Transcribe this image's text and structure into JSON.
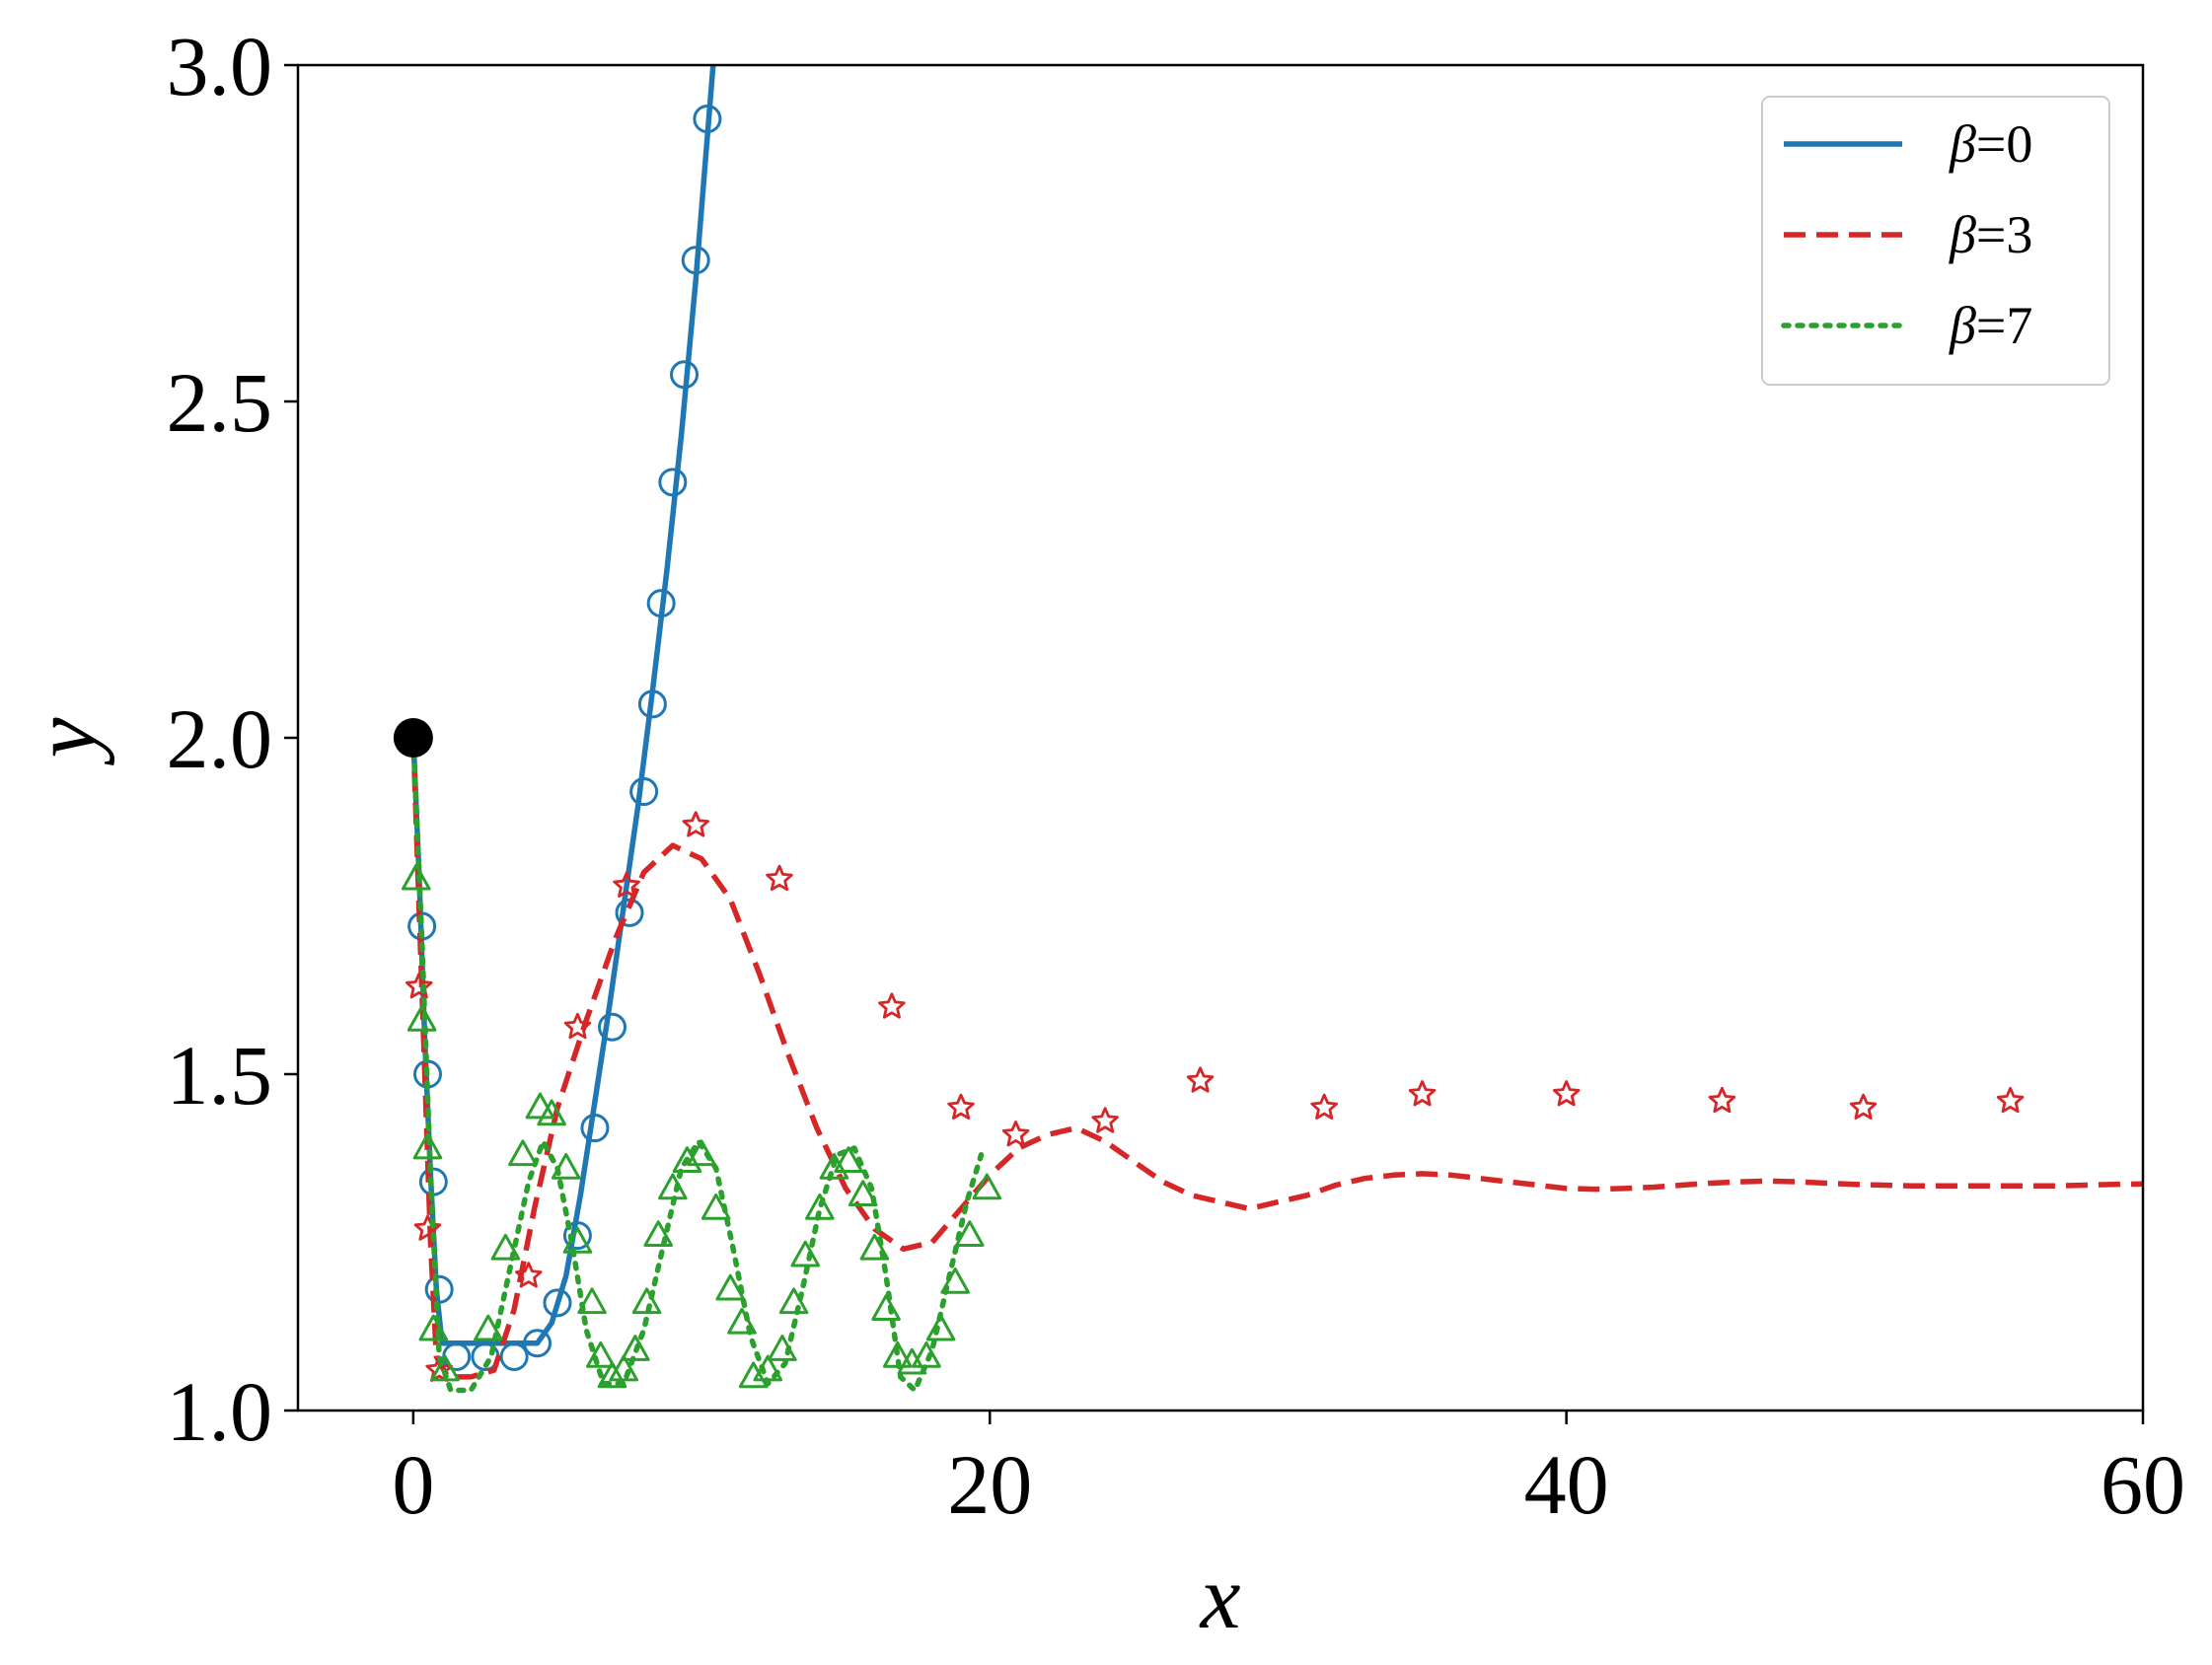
{
  "chart_data": {
    "type": "line",
    "title": "",
    "xlabel": "x",
    "ylabel": "y",
    "xlim": [
      -4,
      60
    ],
    "ylim": [
      1.0,
      3.0
    ],
    "xticks": [
      0,
      20,
      40,
      60
    ],
    "xtick_labels": [
      "0",
      "20",
      "40",
      "60"
    ],
    "yticks": [
      1.0,
      1.5,
      2.0,
      2.5,
      3.0
    ],
    "ytick_labels": [
      "1.0",
      "1.5",
      "2.0",
      "2.5",
      "3.0"
    ],
    "grid": false,
    "legend_position": "top-right",
    "start_point": {
      "x": 0,
      "y": 2.0
    },
    "series": [
      {
        "name": "β=0",
        "legend_symbol": "β",
        "legend_value": "=0",
        "color": "#1f77b4",
        "line_style": "solid",
        "marker": "circle",
        "line": [
          [
            0,
            2.0
          ],
          [
            0.2,
            1.8
          ],
          [
            0.4,
            1.55
          ],
          [
            0.6,
            1.35
          ],
          [
            0.8,
            1.18
          ],
          [
            1.0,
            1.1
          ],
          [
            1.5,
            1.1
          ],
          [
            2.5,
            1.1
          ],
          [
            3.5,
            1.1
          ],
          [
            4.3,
            1.1
          ],
          [
            4.8,
            1.13
          ],
          [
            5.3,
            1.2
          ],
          [
            5.8,
            1.32
          ],
          [
            6.3,
            1.46
          ],
          [
            6.8,
            1.6
          ],
          [
            7.3,
            1.75
          ],
          [
            7.8,
            1.9
          ],
          [
            8.3,
            2.07
          ],
          [
            8.8,
            2.25
          ],
          [
            9.3,
            2.45
          ],
          [
            9.8,
            2.68
          ],
          [
            10.4,
            3.0
          ]
        ],
        "markers": [
          [
            0.3,
            1.72
          ],
          [
            0.5,
            1.5
          ],
          [
            0.7,
            1.34
          ],
          [
            0.9,
            1.18
          ],
          [
            1.5,
            1.08
          ],
          [
            2.5,
            1.08
          ],
          [
            3.5,
            1.08
          ],
          [
            4.3,
            1.1
          ],
          [
            5.0,
            1.16
          ],
          [
            5.7,
            1.26
          ],
          [
            6.3,
            1.42
          ],
          [
            6.9,
            1.57
          ],
          [
            7.5,
            1.74
          ],
          [
            8.0,
            1.92
          ],
          [
            8.3,
            2.05
          ],
          [
            8.6,
            2.2
          ],
          [
            9.0,
            2.38
          ],
          [
            9.4,
            2.54
          ],
          [
            9.8,
            2.71
          ],
          [
            10.2,
            2.92
          ]
        ]
      },
      {
        "name": "β=3",
        "legend_symbol": "β",
        "legend_value": "=3",
        "color": "#d62728",
        "line_style": "dashed",
        "marker": "star",
        "line": [
          [
            0,
            2.0
          ],
          [
            0.2,
            1.75
          ],
          [
            0.4,
            1.5
          ],
          [
            0.6,
            1.25
          ],
          [
            0.8,
            1.08
          ],
          [
            1.2,
            1.05
          ],
          [
            2.0,
            1.05
          ],
          [
            2.8,
            1.06
          ],
          [
            3.5,
            1.15
          ],
          [
            4.2,
            1.3
          ],
          [
            5.0,
            1.45
          ],
          [
            6.0,
            1.58
          ],
          [
            7.0,
            1.7
          ],
          [
            8.0,
            1.8
          ],
          [
            9.0,
            1.84
          ],
          [
            10.0,
            1.82
          ],
          [
            11.0,
            1.76
          ],
          [
            12.0,
            1.65
          ],
          [
            13.0,
            1.53
          ],
          [
            14.0,
            1.42
          ],
          [
            15.0,
            1.33
          ],
          [
            16.0,
            1.27
          ],
          [
            17.0,
            1.24
          ],
          [
            18.0,
            1.25
          ],
          [
            19.0,
            1.3
          ],
          [
            20.0,
            1.35
          ],
          [
            21.0,
            1.39
          ],
          [
            22.0,
            1.41
          ],
          [
            23.0,
            1.42
          ],
          [
            24.0,
            1.4
          ],
          [
            25.0,
            1.37
          ],
          [
            26.0,
            1.34
          ],
          [
            27.0,
            1.32
          ],
          [
            28.0,
            1.31
          ],
          [
            29.0,
            1.3
          ],
          [
            30.0,
            1.31
          ],
          [
            31.0,
            1.32
          ],
          [
            32.0,
            1.335
          ],
          [
            33.0,
            1.345
          ],
          [
            34.0,
            1.35
          ],
          [
            35.0,
            1.352
          ],
          [
            36.0,
            1.35
          ],
          [
            37.0,
            1.345
          ],
          [
            38.0,
            1.34
          ],
          [
            39.0,
            1.335
          ],
          [
            40.0,
            1.33
          ],
          [
            41.0,
            1.329
          ],
          [
            42.0,
            1.33
          ],
          [
            43.0,
            1.332
          ],
          [
            44.0,
            1.335
          ],
          [
            45.0,
            1.338
          ],
          [
            46.0,
            1.34
          ],
          [
            47.0,
            1.341
          ],
          [
            48.0,
            1.34
          ],
          [
            49.0,
            1.338
          ],
          [
            50.0,
            1.336
          ],
          [
            51.0,
            1.335
          ],
          [
            52.0,
            1.334
          ],
          [
            53.0,
            1.334
          ],
          [
            54.0,
            1.334
          ],
          [
            55.0,
            1.334
          ],
          [
            56.0,
            1.334
          ],
          [
            57.0,
            1.334
          ],
          [
            58.0,
            1.335
          ],
          [
            59.0,
            1.336
          ],
          [
            60.0,
            1.337
          ]
        ],
        "markers": [
          [
            0.2,
            1.63
          ],
          [
            0.5,
            1.27
          ],
          [
            0.9,
            1.06
          ],
          [
            4.0,
            1.2
          ],
          [
            5.7,
            1.57
          ],
          [
            7.4,
            1.78
          ],
          [
            9.8,
            1.87
          ],
          [
            12.7,
            1.79
          ],
          [
            16.6,
            1.6
          ],
          [
            19.0,
            1.45
          ],
          [
            20.9,
            1.41
          ],
          [
            24.0,
            1.43
          ],
          [
            27.3,
            1.49
          ],
          [
            31.6,
            1.45
          ],
          [
            35.0,
            1.47
          ],
          [
            40.0,
            1.47
          ],
          [
            45.4,
            1.46
          ],
          [
            50.3,
            1.45
          ],
          [
            55.4,
            1.46
          ]
        ]
      },
      {
        "name": "β=7",
        "legend_symbol": "β",
        "legend_value": "=7",
        "color": "#2ca02c",
        "line_style": "dotted",
        "marker": "triangle",
        "line": [
          [
            0,
            2.0
          ],
          [
            0.3,
            1.7
          ],
          [
            0.6,
            1.35
          ],
          [
            0.9,
            1.08
          ],
          [
            1.3,
            1.03
          ],
          [
            2.0,
            1.03
          ],
          [
            2.7,
            1.08
          ],
          [
            3.3,
            1.2
          ],
          [
            4.0,
            1.34
          ],
          [
            4.5,
            1.4
          ],
          [
            5.0,
            1.36
          ],
          [
            5.5,
            1.25
          ],
          [
            6.0,
            1.12
          ],
          [
            6.6,
            1.04
          ],
          [
            7.3,
            1.04
          ],
          [
            8.0,
            1.12
          ],
          [
            8.7,
            1.25
          ],
          [
            9.3,
            1.36
          ],
          [
            9.9,
            1.4
          ],
          [
            10.5,
            1.36
          ],
          [
            11.1,
            1.24
          ],
          [
            11.7,
            1.11
          ],
          [
            12.3,
            1.04
          ],
          [
            12.9,
            1.07
          ],
          [
            13.5,
            1.18
          ],
          [
            14.1,
            1.3
          ],
          [
            14.7,
            1.38
          ],
          [
            15.3,
            1.39
          ],
          [
            15.9,
            1.33
          ],
          [
            16.4,
            1.2
          ],
          [
            16.9,
            1.05
          ],
          [
            17.4,
            1.03
          ],
          [
            18.0,
            1.09
          ],
          [
            18.6,
            1.2
          ],
          [
            19.2,
            1.31
          ],
          [
            19.7,
            1.38
          ]
        ],
        "markers": [
          [
            0.1,
            1.79
          ],
          [
            0.3,
            1.58
          ],
          [
            0.5,
            1.39
          ],
          [
            0.7,
            1.12
          ],
          [
            1.1,
            1.06
          ],
          [
            2.6,
            1.12
          ],
          [
            3.2,
            1.24
          ],
          [
            3.8,
            1.38
          ],
          [
            4.4,
            1.45
          ],
          [
            4.8,
            1.44
          ],
          [
            5.3,
            1.36
          ],
          [
            5.7,
            1.25
          ],
          [
            6.2,
            1.16
          ],
          [
            6.5,
            1.08
          ],
          [
            6.9,
            1.05
          ],
          [
            7.3,
            1.06
          ],
          [
            7.7,
            1.09
          ],
          [
            8.1,
            1.16
          ],
          [
            8.5,
            1.26
          ],
          [
            9.0,
            1.33
          ],
          [
            9.5,
            1.37
          ],
          [
            10.0,
            1.38
          ],
          [
            10.5,
            1.3
          ],
          [
            11.0,
            1.18
          ],
          [
            11.4,
            1.13
          ],
          [
            11.8,
            1.05
          ],
          [
            12.3,
            1.06
          ],
          [
            12.8,
            1.09
          ],
          [
            13.2,
            1.16
          ],
          [
            13.6,
            1.23
          ],
          [
            14.1,
            1.3
          ],
          [
            14.6,
            1.36
          ],
          [
            15.1,
            1.37
          ],
          [
            15.6,
            1.32
          ],
          [
            16.0,
            1.24
          ],
          [
            16.4,
            1.15
          ],
          [
            16.8,
            1.08
          ],
          [
            17.3,
            1.07
          ],
          [
            17.8,
            1.08
          ],
          [
            18.3,
            1.12
          ],
          [
            18.8,
            1.19
          ],
          [
            19.3,
            1.26
          ],
          [
            19.9,
            1.33
          ]
        ]
      }
    ]
  }
}
